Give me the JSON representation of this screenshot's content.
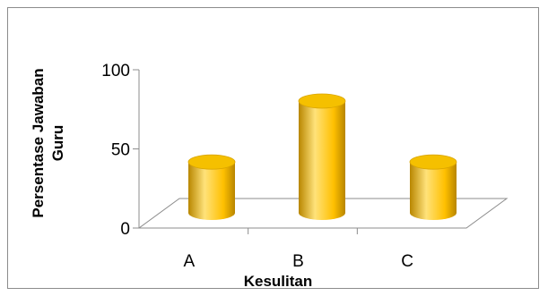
{
  "chart_data": {
    "type": "bar",
    "style": "3d-cylinder",
    "categories": [
      "A",
      "B",
      "C"
    ],
    "values": [
      35,
      77,
      35
    ],
    "xlabel": "Kesulitan",
    "ylabel_lines": [
      "Persentase Jawaban",
      "Guru"
    ],
    "ylim": [
      0,
      100
    ],
    "yticks": [
      0,
      50,
      100
    ],
    "grid": false,
    "legend": "none",
    "colors": {
      "bar_light": "#FFE27A",
      "bar_mid": "#FFC000",
      "bar_dark": "#B88600",
      "bar_top": "#F5C000"
    }
  }
}
